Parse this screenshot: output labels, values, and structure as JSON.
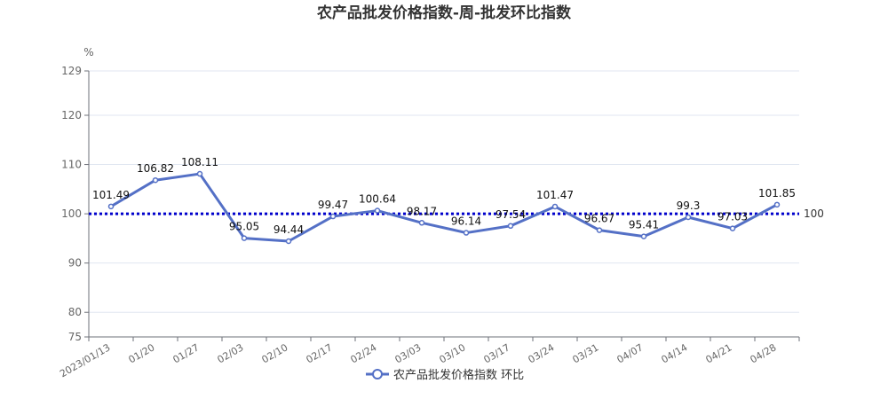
{
  "chart_data": {
    "type": "line",
    "title": "农产品批发价格指数-周-批发环比指数",
    "y_unit": "%",
    "ylim": [
      75,
      129
    ],
    "yticks": [
      75,
      80,
      90,
      100,
      110,
      120,
      129
    ],
    "categories": [
      "2023/01/13",
      "01/20",
      "01/27",
      "02/03",
      "02/10",
      "02/17",
      "02/24",
      "03/03",
      "03/10",
      "03/17",
      "03/24",
      "03/31",
      "04/07",
      "04/14",
      "04/21",
      "04/28"
    ],
    "series": [
      {
        "name": "农产品批发价格指数 环比",
        "color": "#5470c6",
        "values": [
          101.49,
          106.82,
          108.11,
          95.05,
          94.44,
          99.47,
          100.64,
          98.17,
          96.14,
          97.54,
          101.47,
          96.67,
          95.41,
          99.3,
          97.03,
          101.85
        ]
      }
    ],
    "reference_line": {
      "value": 100,
      "label": "100",
      "color": "#0000cc",
      "style": "dotted"
    },
    "legend_position": "bottom-center",
    "grid": "horizontal"
  }
}
